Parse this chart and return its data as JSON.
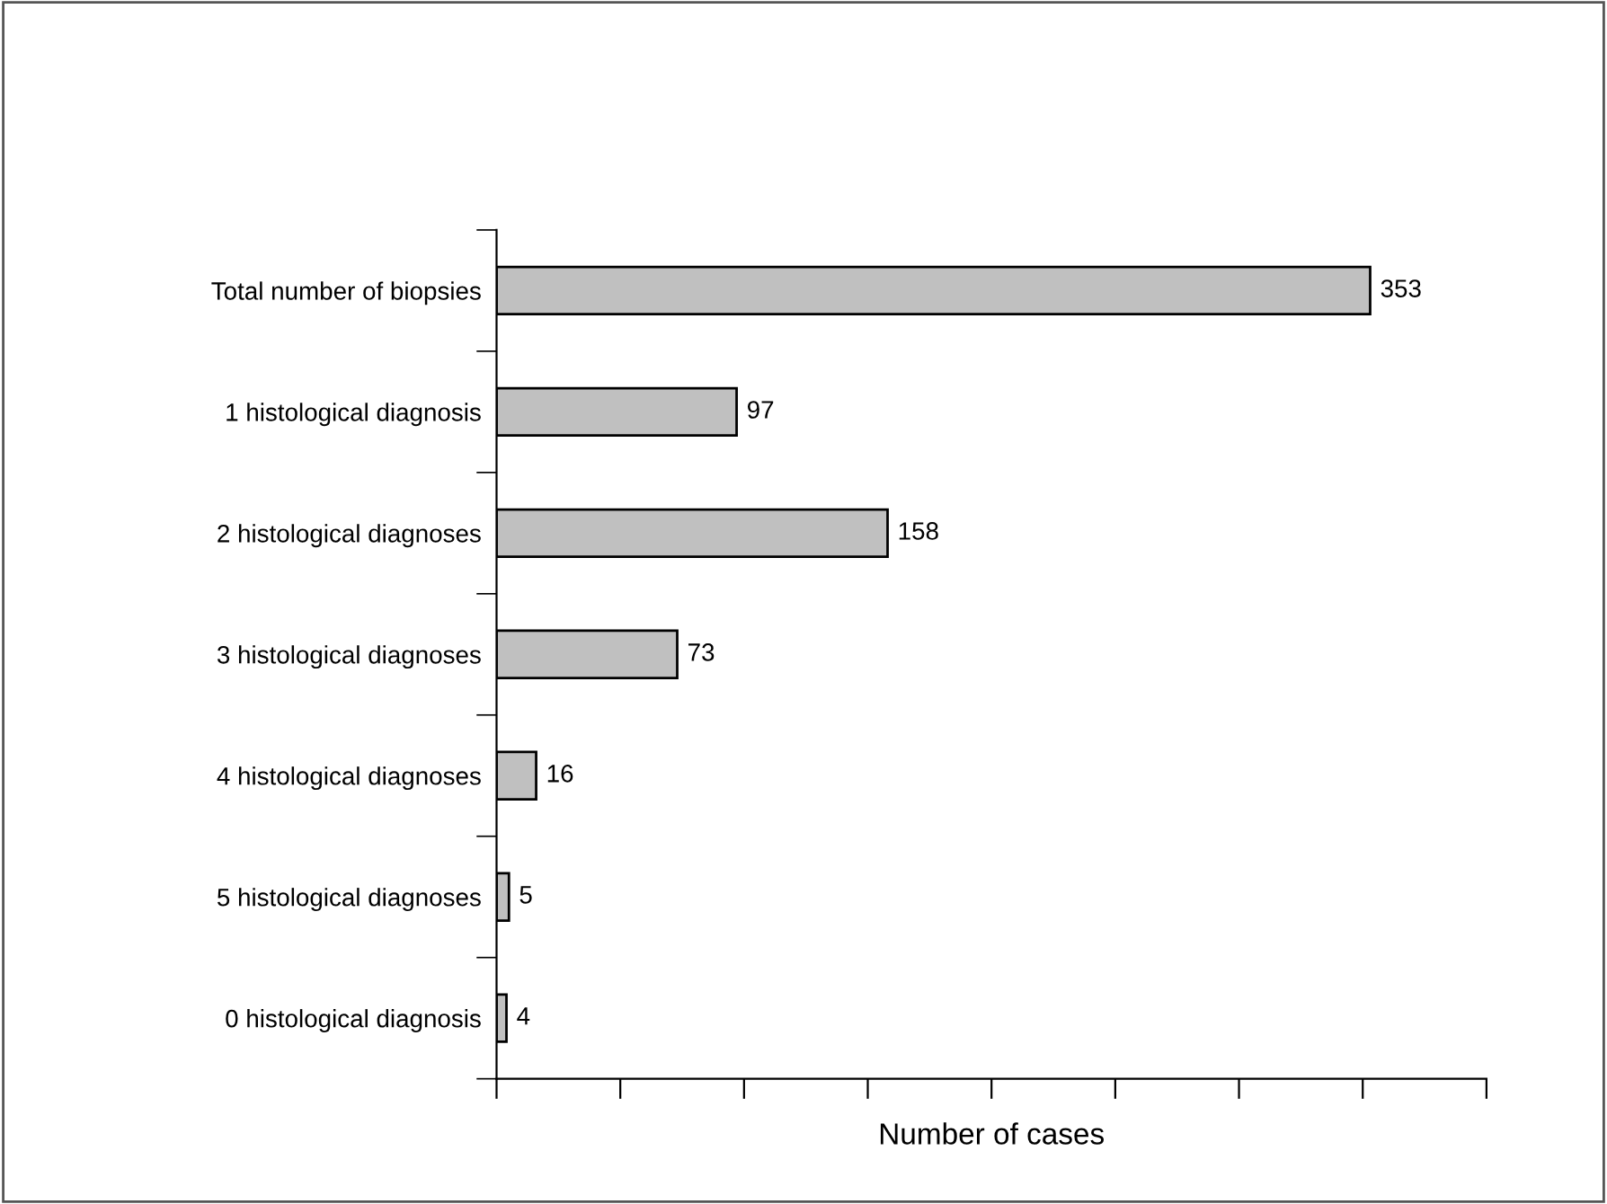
{
  "chart_data": {
    "type": "bar",
    "orientation": "horizontal",
    "xlabel": "Number of cases",
    "categories": [
      "Total number of biopsies",
      "1 histological diagnosis",
      "2 histological diagnoses",
      "3 histological diagnoses",
      "4 histological diagnoses",
      "5 histological diagnoses",
      "0 histological diagnosis"
    ],
    "values": [
      353,
      97,
      158,
      73,
      16,
      5,
      4
    ],
    "color": "#c0c0c0",
    "data_labels": true,
    "tick_labels": "y",
    "grid": false,
    "legend": false,
    "xlim": [
      0,
      400
    ],
    "xticks": [
      {
        "value": 0,
        "label": null
      },
      {
        "value": 50,
        "label": null
      },
      {
        "value": 100,
        "label": null
      },
      {
        "value": 150,
        "label": null
      },
      {
        "value": 200,
        "label": null
      },
      {
        "value": 250,
        "label": null
      },
      {
        "value": 300,
        "label": null
      },
      {
        "value": 350,
        "label": null
      },
      {
        "value": 400,
        "label": null
      }
    ]
  }
}
